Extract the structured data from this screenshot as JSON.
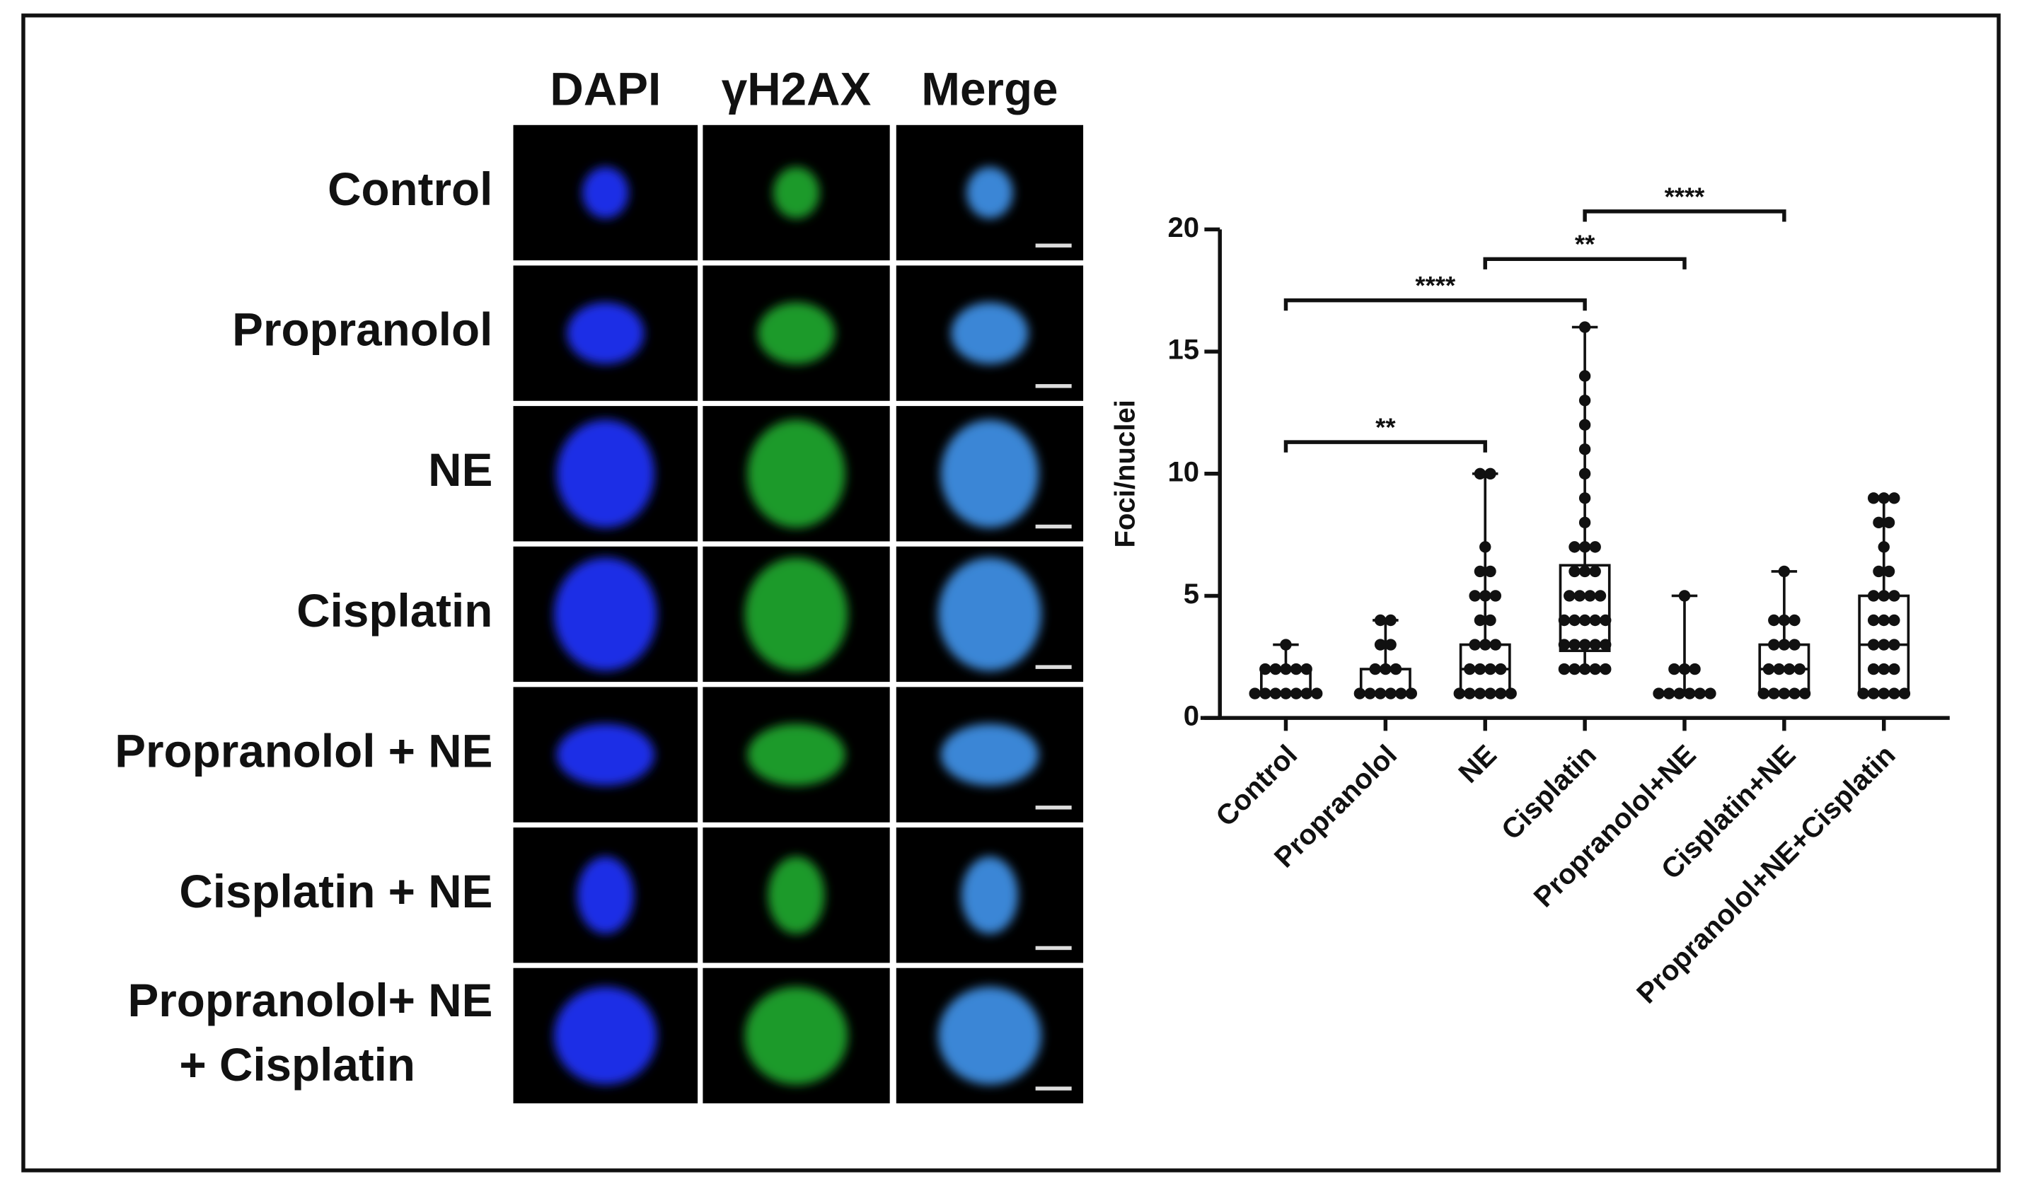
{
  "panel": {
    "columns": [
      "DAPI",
      "γH2AX",
      "Merge"
    ],
    "rows": [
      [
        "Control"
      ],
      [
        "Propranolol"
      ],
      [
        "NE"
      ],
      [
        "Cisplatin"
      ],
      [
        "Propranolol + NE"
      ],
      [
        "Cisplatin + NE"
      ],
      [
        "Propranolol+ NE",
        "+ Cisplatin"
      ]
    ]
  },
  "chart_data": {
    "type": "box",
    "ylabel": "Foci/nuclei",
    "categories": [
      "Control",
      "Propranolol",
      "NE",
      "Cisplatin",
      "Propranolol+NE",
      "Cisplatin+NE",
      "Propranolol+NE+Cisplatin"
    ],
    "boxes": [
      {
        "min": 1,
        "q1": 1,
        "median": 1,
        "q3": 2,
        "max": 3,
        "points": [
          1,
          1,
          1,
          1,
          1,
          1,
          1,
          2,
          2,
          2,
          2,
          2,
          3
        ]
      },
      {
        "min": 1,
        "q1": 1,
        "median": 1,
        "q3": 2,
        "max": 4,
        "points": [
          1,
          1,
          1,
          1,
          1,
          1,
          2,
          2,
          2,
          3,
          3,
          4,
          4
        ]
      },
      {
        "min": 1,
        "q1": 1,
        "median": 2,
        "q3": 3,
        "max": 10,
        "points": [
          1,
          1,
          1,
          1,
          1,
          1,
          2,
          2,
          2,
          2,
          3,
          3,
          3,
          4,
          4,
          5,
          5,
          5,
          6,
          6,
          7,
          10,
          10
        ]
      },
      {
        "min": 2,
        "q1": 2.75,
        "median": 4,
        "q3": 6.25,
        "max": 16,
        "points": [
          2,
          2,
          2,
          2,
          2,
          3,
          3,
          3,
          3,
          3,
          4,
          4,
          4,
          4,
          4,
          5,
          5,
          5,
          5,
          6,
          6,
          6,
          7,
          7,
          7,
          8,
          9,
          10,
          11,
          12,
          13,
          14,
          16
        ]
      },
      {
        "min": 1,
        "q1": 1,
        "median": 1,
        "q3": 1,
        "max": 5,
        "points": [
          1,
          1,
          1,
          1,
          1,
          1,
          2,
          2,
          2,
          5
        ]
      },
      {
        "min": 1,
        "q1": 1,
        "median": 2,
        "q3": 3,
        "max": 6,
        "points": [
          1,
          1,
          1,
          1,
          1,
          2,
          2,
          2,
          2,
          3,
          3,
          3,
          4,
          4,
          4,
          6
        ]
      },
      {
        "min": 1,
        "q1": 1,
        "median": 3,
        "q3": 5,
        "max": 9,
        "points": [
          1,
          1,
          1,
          1,
          1,
          2,
          2,
          2,
          3,
          3,
          3,
          4,
          4,
          4,
          5,
          5,
          5,
          6,
          6,
          7,
          8,
          8,
          9,
          9,
          9
        ]
      }
    ],
    "ylim": [
      0,
      20
    ],
    "yticks": [
      0,
      5,
      10,
      15,
      20
    ],
    "color": "#111111",
    "significance": [
      {
        "between": [
          "Control",
          "NE"
        ],
        "label": "**"
      },
      {
        "between": [
          "Control",
          "Cisplatin"
        ],
        "label": "****"
      },
      {
        "between": [
          "NE",
          "Propranolol+NE"
        ],
        "label": "**"
      },
      {
        "between": [
          "Cisplatin",
          "Cisplatin+NE"
        ],
        "label": "****"
      }
    ]
  }
}
